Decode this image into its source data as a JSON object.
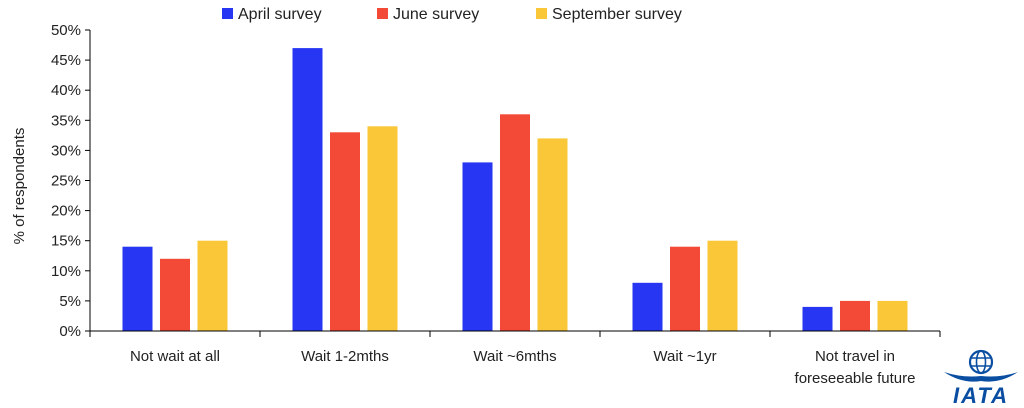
{
  "chart_data": {
    "type": "bar",
    "ylabel": "% of respondents",
    "ylim": [
      0,
      50
    ],
    "yticks": [
      "0%",
      "5%",
      "10%",
      "15%",
      "20%",
      "25%",
      "30%",
      "35%",
      "40%",
      "45%",
      "50%"
    ],
    "categories": [
      [
        "Not wait at all"
      ],
      [
        "Wait 1-2mths"
      ],
      [
        "Wait ~6mths"
      ],
      [
        "Wait ~1yr"
      ],
      [
        "Not travel in",
        "foreseeable future"
      ]
    ],
    "series": [
      {
        "name": "April survey",
        "color": "#2636f2",
        "values": [
          14,
          47,
          28,
          8,
          4
        ]
      },
      {
        "name": "June survey",
        "color": "#f24a36",
        "values": [
          12,
          33,
          36,
          14,
          5
        ]
      },
      {
        "name": "September survey",
        "color": "#fac738",
        "values": [
          15,
          34,
          32,
          15,
          5
        ]
      }
    ],
    "legend": "top"
  },
  "logo": {
    "text": "IATA",
    "icon": "globe-icon",
    "color": "#0a4ea2"
  }
}
